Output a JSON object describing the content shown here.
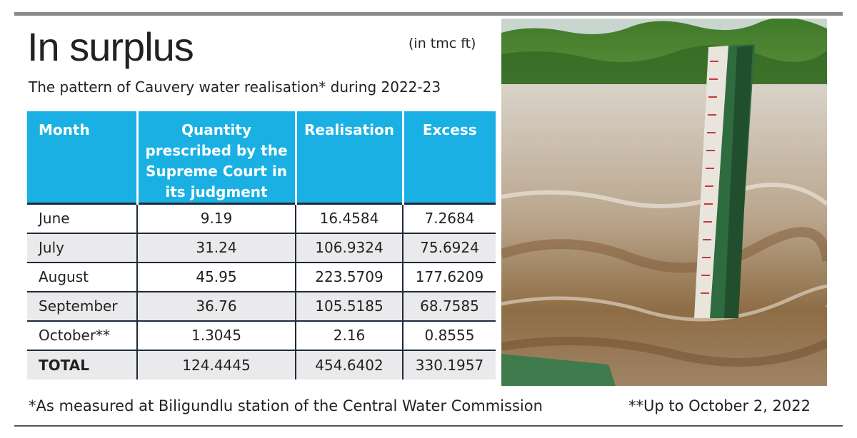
{
  "title": "In surplus",
  "unit": "(in tmc ft)",
  "subtitle": "The pattern of Cauvery water realisation* during 2022-23",
  "chart_data": {
    "type": "table",
    "columns": [
      "Month",
      "Quantity prescribed by the Supreme Court in its judgment",
      "Realisation",
      "Excess"
    ],
    "rows": [
      [
        "June",
        "9.19",
        "16.4584",
        "7.2684"
      ],
      [
        "July",
        "31.24",
        "106.9324",
        "75.6924"
      ],
      [
        "August",
        "45.95",
        "223.5709",
        "177.6209"
      ],
      [
        "September",
        "36.76",
        "105.5185",
        "68.7585"
      ],
      [
        "October**",
        "1.3045",
        "2.16",
        "0.8555"
      ],
      [
        "TOTAL",
        "124.4445",
        "454.6402",
        "330.1957"
      ]
    ]
  },
  "footnotes": {
    "left": "*As measured at Biligundlu station of the Central Water Commission",
    "right": "**Up to October 2, 2022"
  },
  "colors": {
    "header_bg": "#1ab0e4",
    "header_text": "#ffffff",
    "row_shade": "#eaeaec",
    "grid_line": "#1d2b3a"
  },
  "photo": {
    "icon": "flood-water-gauge-photo"
  }
}
